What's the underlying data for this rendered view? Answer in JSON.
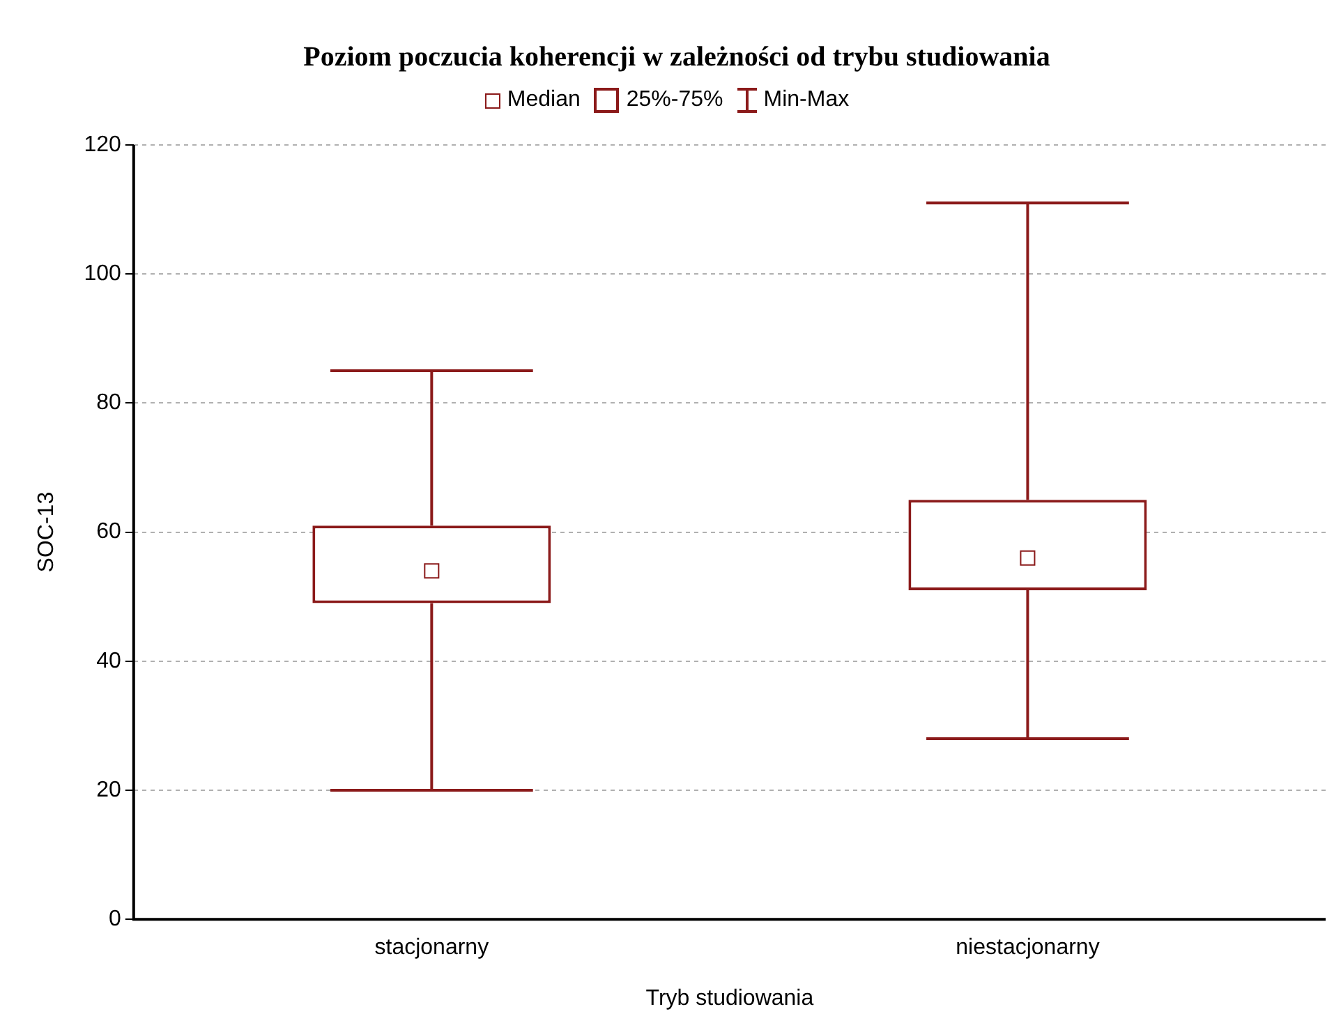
{
  "chart_data": {
    "type": "box",
    "title": "Poziom poczucia koherencji w zależności od trybu studiowania",
    "xlabel": "Tryb studiowania",
    "ylabel": "SOC-13",
    "categories": [
      "stacjonarny",
      "niestacjonarny"
    ],
    "series": [
      {
        "color": "#8b1a1a",
        "boxes": [
          {
            "low": 20,
            "q1": 49,
            "median": 54,
            "q3": 61,
            "high": 85
          },
          {
            "low": 28,
            "q1": 51,
            "median": 56,
            "q3": 65,
            "high": 111
          }
        ]
      }
    ],
    "ylim": [
      0,
      120
    ],
    "yticks": [
      0,
      20,
      40,
      60,
      80,
      100,
      120
    ],
    "grid": "y",
    "annotations": [
      "Median",
      "25%-75%",
      "Min-Max"
    ]
  }
}
